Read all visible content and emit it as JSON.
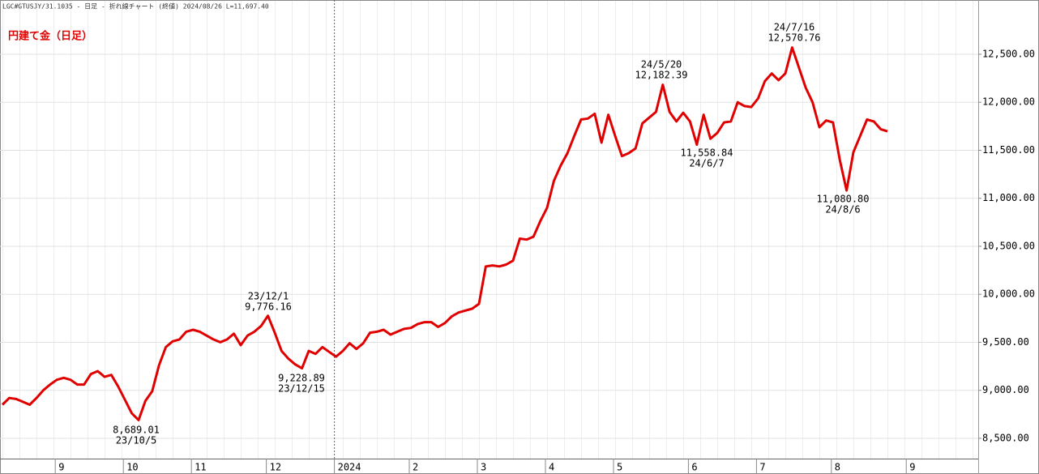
{
  "header": "LGC#GTUSJY/31.1035 - 日足 - 折れ線チャート (終値)  2024/08/26 L=11,697.40",
  "chart_data": {
    "type": "line",
    "title": "円建て金（日足）",
    "categories": [
      null,
      null,
      null,
      null,
      null,
      null,
      null,
      null,
      "9",
      null,
      null,
      null,
      null,
      null,
      null,
      null,
      null,
      null,
      "10",
      null,
      null,
      null,
      null,
      null,
      null,
      null,
      null,
      null,
      "11",
      null,
      null,
      null,
      null,
      null,
      null,
      null,
      null,
      null,
      null,
      "12",
      null,
      null,
      null,
      null,
      null,
      null,
      null,
      null,
      null,
      "2024",
      null,
      null,
      null,
      null,
      null,
      null,
      null,
      null,
      null,
      null,
      "2",
      null,
      null,
      null,
      null,
      null,
      null,
      null,
      null,
      null,
      "3",
      null,
      null,
      null,
      null,
      null,
      null,
      null,
      null,
      null,
      "4",
      null,
      null,
      null,
      null,
      null,
      null,
      null,
      null,
      null,
      "5",
      null,
      null,
      null,
      null,
      null,
      null,
      null,
      null,
      null,
      null,
      "6",
      null,
      null,
      null,
      null,
      null,
      null,
      null,
      null,
      null,
      "7",
      null,
      null,
      null,
      null,
      null,
      null,
      null,
      null,
      null,
      null,
      "8",
      null,
      null,
      null,
      null,
      null,
      null,
      null,
      null,
      null,
      null,
      "9"
    ],
    "series": [
      {
        "color": "#e00000",
        "values": [
          8850,
          8920,
          8910,
          8880,
          8850,
          8920,
          9000,
          9060,
          9110,
          9130,
          9110,
          9060,
          9060,
          9170,
          9200,
          9140,
          9160,
          9040,
          8900,
          8760,
          8689.01,
          8890,
          8990,
          9260,
          9450,
          9510,
          9530,
          9610,
          9630,
          9610,
          9570,
          9530,
          9500,
          9530,
          9590,
          9470,
          9570,
          9610,
          9670,
          9776.16,
          9600,
          9410,
          9330,
          9270,
          9228.89,
          9410,
          9380,
          9450,
          9400,
          9350,
          9410,
          9490,
          9430,
          9490,
          9600,
          9610,
          9630,
          9580,
          9610,
          9640,
          9650,
          9690,
          9710,
          9710,
          9660,
          9700,
          9770,
          9810,
          9830,
          9850,
          9900,
          10290,
          10300,
          10290,
          10310,
          10350,
          10580,
          10570,
          10600,
          10760,
          10900,
          11180,
          11340,
          11470,
          11650,
          11820,
          11830,
          11880,
          11580,
          11870,
          11650,
          11440,
          11470,
          11520,
          11780,
          11840,
          11900,
          12182.39,
          11900,
          11800,
          11890,
          11800,
          11558.84,
          11870,
          11620,
          11680,
          11790,
          11800,
          12000,
          11960,
          11950,
          12040,
          12220,
          12300,
          12230,
          12300,
          12570.76,
          12360,
          12150,
          12000,
          11740,
          11810,
          11790,
          11400,
          11080.8,
          11480,
          11650,
          11820,
          11800,
          11720,
          11697.4,
          null,
          null,
          null
        ]
      }
    ],
    "ylim": [
      8297,
      13065
    ],
    "yticks": [
      {
        "value": 8500,
        "label": "8,500.00"
      },
      {
        "value": 9000,
        "label": "9,000.00"
      },
      {
        "value": 9500,
        "label": "9,500.00"
      },
      {
        "value": 10000,
        "label": "10,000.00"
      },
      {
        "value": 10500,
        "label": "10,500.00"
      },
      {
        "value": 11000,
        "label": "11,000.00"
      },
      {
        "value": 11500,
        "label": "11,500.00"
      },
      {
        "value": 12000,
        "label": "12,000.00"
      },
      {
        "value": 12500,
        "label": "12,500.00"
      }
    ],
    "grid": true,
    "annotations": [
      {
        "lines": [
          "8,689.01",
          "23/10/5"
        ]
      },
      {
        "lines": [
          "23/12/1",
          "9,776.16"
        ]
      },
      {
        "lines": [
          "9,228.89",
          "23/12/15"
        ]
      },
      {
        "lines": [
          "24/5/20",
          "12,182.39"
        ]
      },
      {
        "lines": [
          "11,558.84",
          "24/6/7"
        ]
      },
      {
        "lines": [
          "24/7/16",
          "12,570.76"
        ]
      },
      {
        "lines": [
          "11,080.80",
          "24/8/6"
        ]
      }
    ]
  }
}
